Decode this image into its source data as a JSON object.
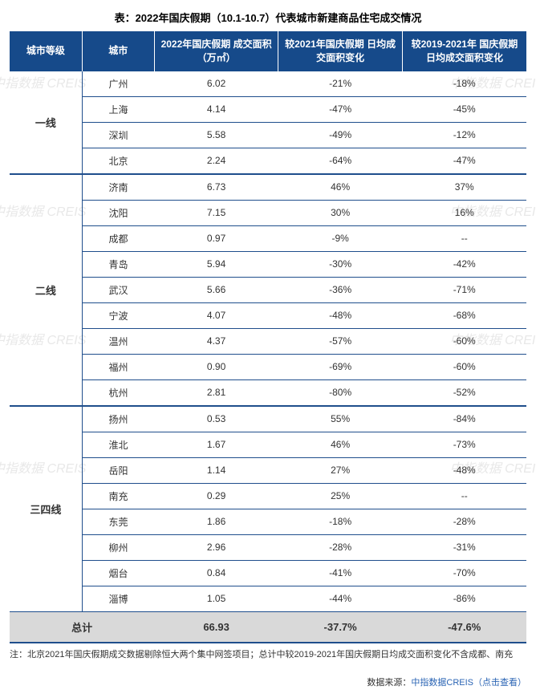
{
  "title": "表：2022年国庆假期（10.1-10.7）代表城市新建商品住宅成交情况",
  "columns": {
    "c0": "城市等级",
    "c1": "城市",
    "c2": "2022年国庆假期\n成交面积（万㎡）",
    "c3": "较2021年国庆假期\n日均成交面积变化",
    "c4": "较2019-2021年\n国庆假期\n日均成交面积变化"
  },
  "col_widths": [
    "14%",
    "14%",
    "24%",
    "24%",
    "24%"
  ],
  "header_bg": "#164a8a",
  "header_fg": "#ffffff",
  "border_color": "#1f4e8c",
  "total_bg": "#d9d9d9",
  "tiers": [
    {
      "name": "一线",
      "rows": [
        {
          "city": "广州",
          "area": "6.02",
          "vs21": "-21%",
          "vs1921": "-18%"
        },
        {
          "city": "上海",
          "area": "4.14",
          "vs21": "-47%",
          "vs1921": "-45%"
        },
        {
          "city": "深圳",
          "area": "5.58",
          "vs21": "-49%",
          "vs1921": "-12%"
        },
        {
          "city": "北京",
          "area": "2.24",
          "vs21": "-64%",
          "vs1921": "-47%"
        }
      ]
    },
    {
      "name": "二线",
      "rows": [
        {
          "city": "济南",
          "area": "6.73",
          "vs21": "46%",
          "vs1921": "37%"
        },
        {
          "city": "沈阳",
          "area": "7.15",
          "vs21": "30%",
          "vs1921": "16%"
        },
        {
          "city": "成都",
          "area": "0.97",
          "vs21": "-9%",
          "vs1921": "--"
        },
        {
          "city": "青岛",
          "area": "5.94",
          "vs21": "-30%",
          "vs1921": "-42%"
        },
        {
          "city": "武汉",
          "area": "5.66",
          "vs21": "-36%",
          "vs1921": "-71%"
        },
        {
          "city": "宁波",
          "area": "4.07",
          "vs21": "-48%",
          "vs1921": "-68%"
        },
        {
          "city": "温州",
          "area": "4.37",
          "vs21": "-57%",
          "vs1921": "-60%"
        },
        {
          "city": "福州",
          "area": "0.90",
          "vs21": "-69%",
          "vs1921": "-60%"
        },
        {
          "city": "杭州",
          "area": "2.81",
          "vs21": "-80%",
          "vs1921": "-52%"
        }
      ]
    },
    {
      "name": "三四线",
      "rows": [
        {
          "city": "扬州",
          "area": "0.53",
          "vs21": "55%",
          "vs1921": "-84%"
        },
        {
          "city": "淮北",
          "area": "1.67",
          "vs21": "46%",
          "vs1921": "-73%"
        },
        {
          "city": "岳阳",
          "area": "1.14",
          "vs21": "27%",
          "vs1921": "-48%"
        },
        {
          "city": "南充",
          "area": "0.29",
          "vs21": "25%",
          "vs1921": "--"
        },
        {
          "city": "东莞",
          "area": "1.86",
          "vs21": "-18%",
          "vs1921": "-28%"
        },
        {
          "city": "柳州",
          "area": "2.96",
          "vs21": "-28%",
          "vs1921": "-31%"
        },
        {
          "city": "烟台",
          "area": "0.84",
          "vs21": "-41%",
          "vs1921": "-70%"
        },
        {
          "city": "淄博",
          "area": "1.05",
          "vs21": "-44%",
          "vs1921": "-86%"
        }
      ]
    }
  ],
  "total": {
    "label": "总计",
    "area": "66.93",
    "vs21": "-37.7%",
    "vs1921": "-47.6%"
  },
  "footnote": "注：北京2021年国庆假期成交数据剔除恒大两个集中网签项目；总计中较2019-2021年国庆假期日均成交面积变化不含成都、南充",
  "source_prefix": "数据来源：",
  "source_link": "中指数据CREIS（点击查看）",
  "watermark_text": "中指数据 CREIS",
  "watermark_color": "#ececec"
}
